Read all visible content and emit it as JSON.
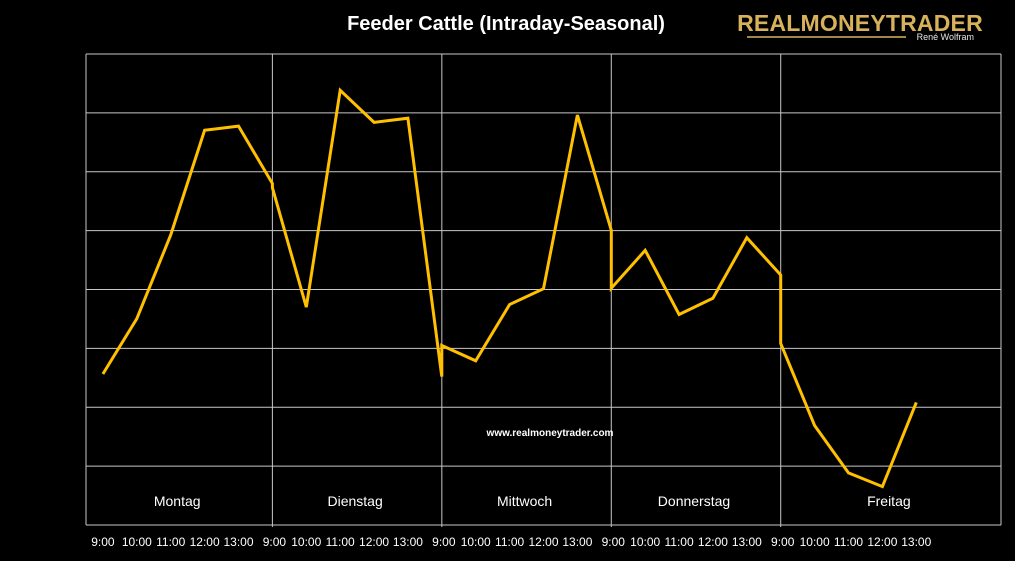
{
  "logo": {
    "main": "REALMONEYTRADER",
    "sub": "René Wolfram"
  },
  "chart_data": {
    "type": "line",
    "title": "Feeder Cattle (Intraday-Seasonal)",
    "watermark": "www.realmoneytrader.com",
    "days": [
      "Montag",
      "Dienstag",
      "Mittwoch",
      "Donnerstag",
      "Freitag"
    ],
    "categories": [
      "9:00",
      "10:00",
      "11:00",
      "12:00",
      "13:00",
      "9:00",
      "10:00",
      "11:00",
      "12:00",
      "13:00",
      "9:00",
      "10:00",
      "11:00",
      "12:00",
      "13:00",
      "9:00",
      "10:00",
      "11:00",
      "12:00",
      "13:00",
      "9:00",
      "10:00",
      "11:00",
      "12:00",
      "13:00"
    ],
    "series": [
      {
        "name": "Feeder Cattle",
        "color": "#ffc000",
        "values": [
          2.87,
          3.92,
          5.51,
          7.5,
          7.58,
          6.41,
          4.14,
          8.26,
          7.65,
          7.73,
          3.41,
          3.12,
          4.19,
          4.49,
          7.79,
          4.5,
          5.22,
          4.0,
          4.31,
          5.46,
          3.45,
          1.89,
          0.99,
          0.73,
          2.33
        ],
        "mid_boundary_values": [
          6.49,
          2.82,
          5.6,
          4.75
        ]
      }
    ],
    "ylim": [
      0,
      8.95
    ],
    "y_gridlines": 8,
    "y_tick_labels": false,
    "grid": true,
    "colors": {
      "background": "#000000",
      "line": "#ffc000",
      "grid": "#c8c8c8",
      "logo": "#d8b25a"
    }
  }
}
